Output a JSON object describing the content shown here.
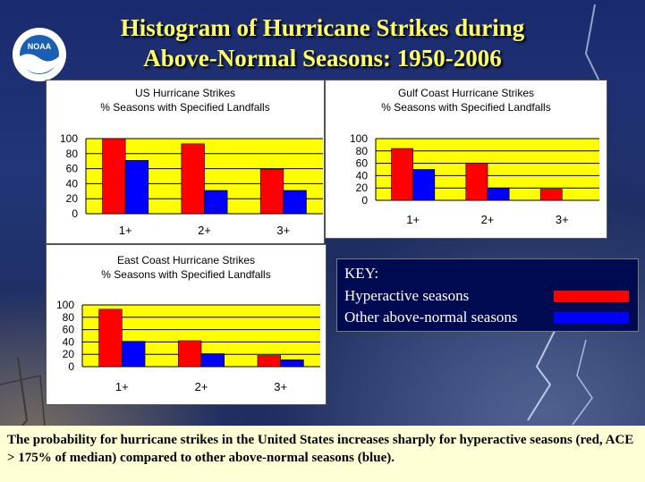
{
  "slide": {
    "title_line1": "Histogram of Hurricane Strikes during",
    "title_line2": "Above-Normal Seasons: 1950-2006",
    "logo_text": "NOAA",
    "caption": "The probability for hurricane strikes in the United States increases sharply for hyperactive seasons (red, ACE > 175% of median) compared to other above-normal seasons (blue)."
  },
  "key": {
    "heading": "KEY:",
    "items": [
      {
        "label": "Hyperactive seasons",
        "color": "#ff0000"
      },
      {
        "label": "Other above-normal seasons",
        "color": "#0000ff"
      }
    ]
  },
  "colors": {
    "plot_bg": "#ffff00",
    "hyper": "#ff0000",
    "other": "#0000ff"
  },
  "chart_data": [
    {
      "type": "bar",
      "title": "US Hurricane Strikes",
      "subtitle": "% Seasons with Specified Landfalls",
      "categories": [
        "1+",
        "2+",
        "3+"
      ],
      "series": [
        {
          "values": [
            100,
            93,
            59
          ]
        },
        {
          "values": [
            71,
            31,
            31
          ]
        }
      ],
      "ylim": [
        0,
        100
      ],
      "yticks": [
        0,
        20,
        40,
        60,
        80,
        100
      ],
      "grid": true,
      "legend": "none"
    },
    {
      "type": "bar",
      "title": "Gulf Coast Hurricane Strikes",
      "subtitle": "% Seasons with Specified Landfalls",
      "categories": [
        "1+",
        "2+",
        "3+"
      ],
      "series": [
        {
          "values": [
            84,
            60,
            18
          ]
        },
        {
          "values": [
            50,
            20,
            0
          ]
        }
      ],
      "ylim": [
        0,
        100
      ],
      "yticks": [
        0,
        20,
        40,
        60,
        80,
        100
      ],
      "grid": true,
      "legend": "none"
    },
    {
      "type": "bar",
      "title": "East Coast Hurricane Strikes",
      "subtitle": "% Seasons with Specified Landfalls",
      "categories": [
        "1+",
        "2+",
        "3+"
      ],
      "series": [
        {
          "values": [
            93,
            42,
            18
          ]
        },
        {
          "values": [
            41,
            21,
            11
          ]
        }
      ],
      "ylim": [
        0,
        100
      ],
      "yticks": [
        0,
        20,
        40,
        60,
        80,
        100
      ],
      "grid": true,
      "legend": "none"
    }
  ]
}
